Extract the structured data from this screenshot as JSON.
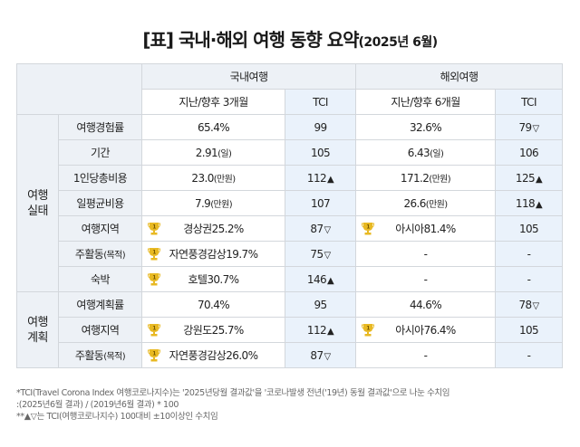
{
  "title": {
    "main": "[표] 국내·해외 여행 동향 요약",
    "sub": "(2025년 6월)"
  },
  "header": {
    "domestic": "국내여행",
    "overseas": "해외여행",
    "dom_period": "지난/향후 3개월",
    "ovs_period": "지난/향후 6개월",
    "tci": "TCI"
  },
  "groups": {
    "actual": "여행 실태",
    "plan": "여행 계획"
  },
  "rows": [
    {
      "label": "여행경험률",
      "dom": "65.4%",
      "dom_tci": "99",
      "dom_mark": "",
      "ovs": "32.6%",
      "ovs_tci": "79",
      "ovs_mark": "▽"
    },
    {
      "label": "기간",
      "dom": "2.91",
      "dom_unit": "(일)",
      "dom_tci": "105",
      "dom_mark": "",
      "ovs": "6.43",
      "ovs_unit": "(일)",
      "ovs_tci": "106",
      "ovs_mark": ""
    },
    {
      "label": "1인당총비용",
      "dom": "23.0",
      "dom_unit": "(만원)",
      "dom_tci": "112",
      "dom_mark": "▲",
      "ovs": "171.2",
      "ovs_unit": "(만원)",
      "ovs_tci": "125",
      "ovs_mark": "▲"
    },
    {
      "label": "일평균비용",
      "dom": "7.9",
      "dom_unit": "(만원)",
      "dom_tci": "107",
      "dom_mark": "",
      "ovs": "26.6",
      "ovs_unit": "(만원)",
      "ovs_tci": "118",
      "ovs_mark": "▲"
    },
    {
      "label": "여행지역",
      "dom": "경상권25.2%",
      "dom_tci": "87",
      "dom_mark": "▽",
      "ovs": "아시아81.4%",
      "ovs_tci": "105",
      "ovs_mark": ""
    },
    {
      "label": "주활동",
      "label_unit": "(목적)",
      "dom": "자연풍경감상19.7%",
      "dom_tci": "75",
      "dom_mark": "▽",
      "ovs": "-",
      "ovs_tci": "-",
      "ovs_mark": ""
    },
    {
      "label": "숙박",
      "dom": "호텔30.7%",
      "dom_tci": "146",
      "dom_mark": "▲",
      "ovs": "-",
      "ovs_tci": "-",
      "ovs_mark": ""
    },
    {
      "label": "여행계획률",
      "dom": "70.4%",
      "dom_tci": "95",
      "dom_mark": "",
      "ovs": "44.6%",
      "ovs_tci": "78",
      "ovs_mark": "▽"
    },
    {
      "label": "여행지역",
      "dom": "강원도25.7%",
      "dom_tci": "112",
      "dom_mark": "▲",
      "ovs": "아시아76.4%",
      "ovs_tci": "105",
      "ovs_mark": ""
    },
    {
      "label": "주활동",
      "label_unit": "(목적)",
      "dom": "자연풍경감상26.0%",
      "dom_tci": "87",
      "dom_mark": "▽",
      "ovs": "-",
      "ovs_tci": "-",
      "ovs_mark": ""
    }
  ],
  "trophy_label": "1",
  "notes": {
    "line1": "*TCI(Travel Corona Index 여행코로나지수)는 '2025년당월 결과값'을 '코로나발생 전년('19년) 동월 결과값'으로 나눈 수치임",
    "line2": ":(2025년6월 결과) / (2019년6월 결과) * 100",
    "line3": "**▲▽는 TCI(여행코로나지수) 100대비 ±10이상인 수치임"
  },
  "colors": {
    "header_bg": "#edf1f6",
    "tci_bg": "#eaf2fb",
    "border": "#d3d7dc",
    "trophy": "#e8b923"
  }
}
